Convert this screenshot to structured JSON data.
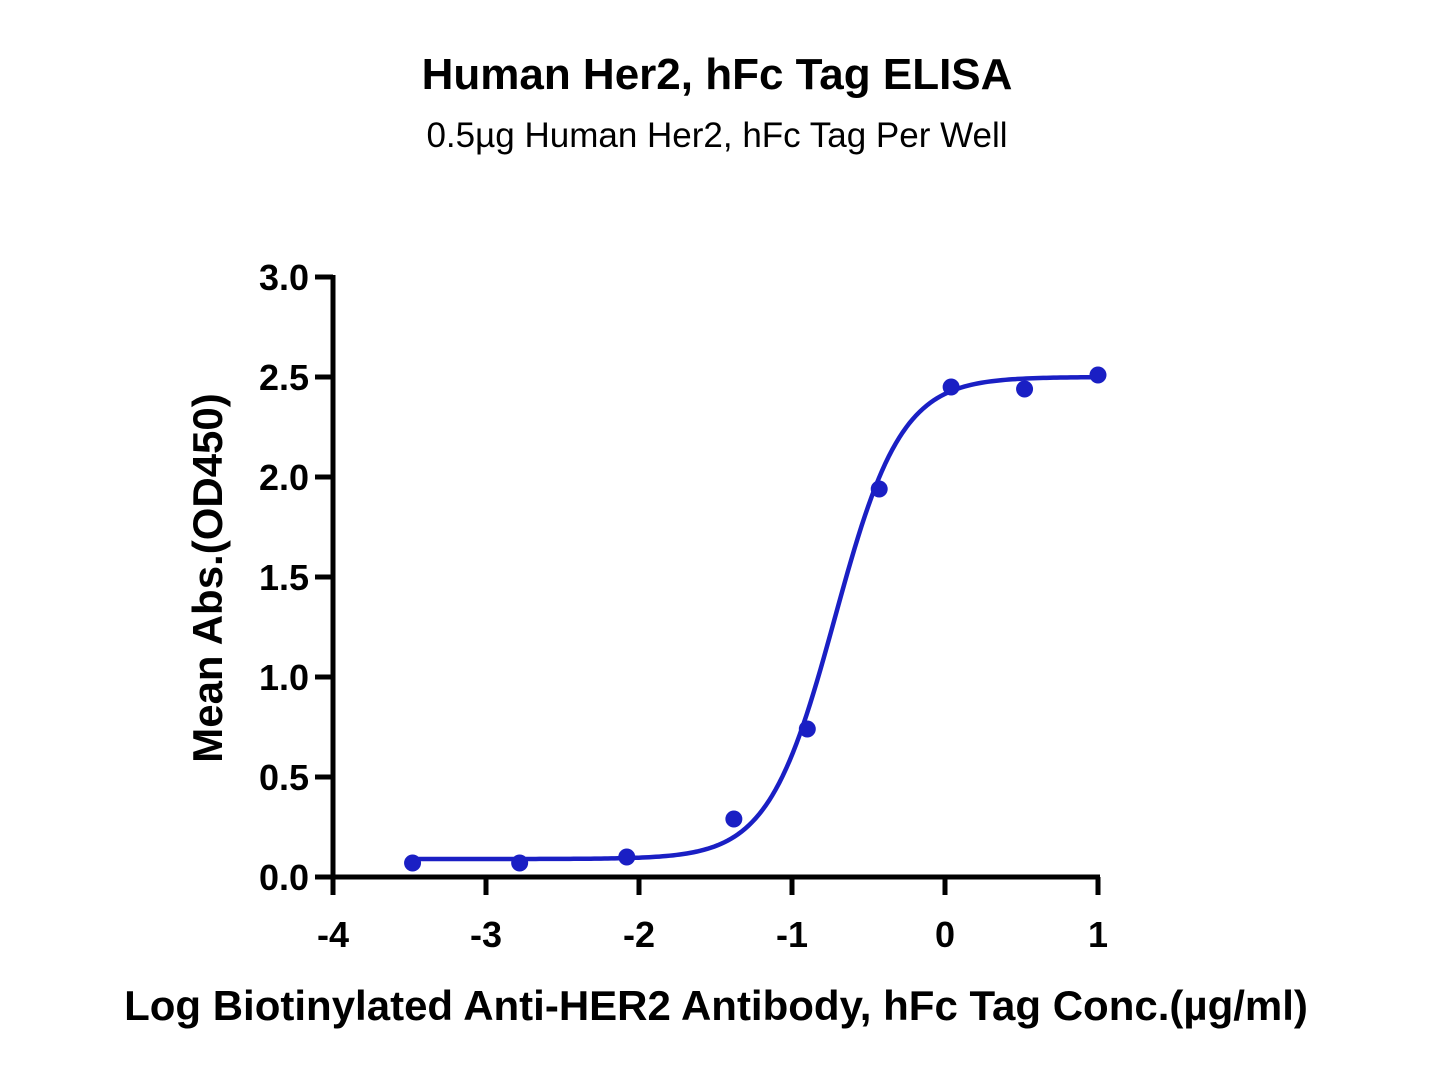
{
  "chart_data": {
    "type": "scatter",
    "title": "Human Her2, hFc Tag ELISA",
    "subtitle": "0.5µg Human Her2, hFc Tag Per Well",
    "xlabel": "Log Biotinylated Anti-HER2 Antibody, hFc Tag Conc.(µg/ml)",
    "ylabel": "Mean Abs.(OD450)",
    "xlim": [
      -4,
      1
    ],
    "ylim": [
      0,
      3.0
    ],
    "x_ticks": [
      "-4",
      "-3",
      "-2",
      "-1",
      "0",
      "1"
    ],
    "y_ticks": [
      "0.0",
      "0.5",
      "1.0",
      "1.5",
      "2.0",
      "2.5",
      "3.0"
    ],
    "grid": false,
    "color": "#1a1fc4",
    "series": [
      {
        "x": [
          -3.48,
          -2.78,
          -2.08,
          -1.38,
          -0.9,
          -0.43,
          0.04,
          0.52,
          1.0
        ],
        "y": [
          0.07,
          0.07,
          0.1,
          0.29,
          0.74,
          1.94,
          2.45,
          2.44,
          2.51
        ],
        "fit": {
          "model": "four-parameter logistic",
          "bottom": 0.09,
          "top": 2.5,
          "logEC50": -0.72,
          "hill": 2.0
        }
      }
    ]
  }
}
